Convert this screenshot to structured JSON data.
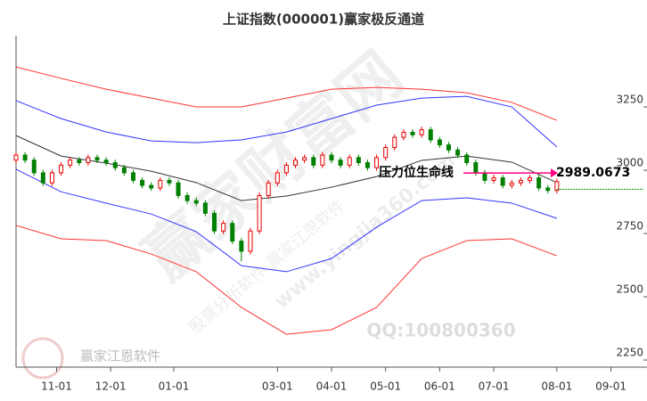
{
  "chart_data": {
    "type": "candlestick",
    "title": "上证指数(000001)赢家极反通道",
    "x": [
      0,
      2,
      4,
      6,
      8,
      10,
      12,
      14,
      16,
      18,
      20,
      22,
      24,
      26,
      28,
      30,
      32,
      34,
      36,
      38,
      40,
      42,
      44,
      46,
      48,
      50,
      52,
      54,
      56,
      58,
      60,
      62,
      64,
      66,
      68,
      70,
      72,
      74,
      76,
      78,
      80,
      82,
      84,
      86,
      88,
      90,
      92,
      94,
      96,
      98,
      100,
      102,
      104,
      106,
      108,
      110,
      112,
      114,
      116,
      118,
      120
    ],
    "open": [
      3040,
      3060,
      3040,
      2990,
      2950,
      2990,
      3020,
      3040,
      3030,
      3050,
      3040,
      3030,
      3010,
      2990,
      2960,
      2940,
      2930,
      2960,
      2950,
      2900,
      2880,
      2870,
      2830,
      2760,
      2790,
      2720,
      2680,
      2760,
      2900,
      2950,
      2990,
      3020,
      3040,
      3050,
      3020,
      3060,
      3040,
      3020,
      3050,
      3030,
      3010,
      3050,
      3090,
      3130,
      3150,
      3140,
      3160,
      3120,
      3100,
      3080,
      3060,
      3030,
      2990,
      2960,
      2970,
      2940,
      2950,
      2960,
      2970,
      2930,
      2920
    ],
    "high": [
      3072,
      3072,
      3052,
      3002,
      3002,
      3032,
      3052,
      3052,
      3062,
      3062,
      3052,
      3042,
      3022,
      3002,
      2972,
      2952,
      2972,
      2972,
      2962,
      2912,
      2892,
      2882,
      2842,
      2802,
      2802,
      2732,
      2772,
      2912,
      2962,
      3002,
      3032,
      3052,
      3062,
      3062,
      3072,
      3072,
      3052,
      3062,
      3062,
      3042,
      3062,
      3102,
      3142,
      3162,
      3162,
      3172,
      3172,
      3132,
      3112,
      3092,
      3072,
      3042,
      3002,
      2982,
      2982,
      2962,
      2972,
      2982,
      2982,
      2942,
      2967
    ],
    "low": [
      3028,
      3028,
      2978,
      2938,
      2938,
      2978,
      3008,
      3018,
      3018,
      3028,
      3018,
      2998,
      2978,
      2948,
      2928,
      2918,
      2918,
      2938,
      2888,
      2868,
      2858,
      2818,
      2748,
      2748,
      2708,
      2640,
      2668,
      2748,
      2888,
      2938,
      2978,
      3008,
      3028,
      3008,
      3008,
      3028,
      3008,
      3008,
      3018,
      2998,
      2998,
      3038,
      3078,
      3118,
      3128,
      3128,
      3108,
      3088,
      3068,
      3048,
      3018,
      2978,
      2948,
      2948,
      2928,
      2928,
      2938,
      2948,
      2918,
      2908,
      2908
    ],
    "close": [
      3060,
      3040,
      2990,
      2950,
      2990,
      3020,
      3040,
      3030,
      3050,
      3040,
      3030,
      3010,
      2990,
      2960,
      2940,
      2930,
      2960,
      2950,
      2900,
      2880,
      2870,
      2830,
      2760,
      2790,
      2720,
      2680,
      2760,
      2900,
      2950,
      2990,
      3020,
      3040,
      3050,
      3020,
      3060,
      3040,
      3020,
      3050,
      3030,
      3010,
      3050,
      3090,
      3130,
      3150,
      3140,
      3160,
      3120,
      3100,
      3080,
      3060,
      3030,
      2990,
      2960,
      2970,
      2940,
      2950,
      2960,
      2970,
      2930,
      2920,
      2955
    ],
    "up_color": "#e60000",
    "down_color": "#008000",
    "channel_x": [
      0,
      10,
      20,
      30,
      40,
      50,
      60,
      70,
      80,
      90,
      100,
      110,
      120
    ],
    "channels": [
      {
        "color": "#ff3333",
        "values": [
          3408,
          3363,
          3320,
          3285,
          3250,
          3250,
          3285,
          3320,
          3327,
          3320,
          3306,
          3268,
          3197
        ]
      },
      {
        "color": "#3333ff",
        "values": [
          3275,
          3204,
          3151,
          3116,
          3109,
          3120,
          3151,
          3204,
          3257,
          3285,
          3292,
          3250,
          3092
        ]
      },
      {
        "color": "#333333",
        "values": [
          3137,
          3056,
          3028,
          2996,
          2951,
          2880,
          2898,
          2933,
          2975,
          3039,
          3056,
          3032,
          2951
        ]
      },
      {
        "color": "#3333ff",
        "values": [
          3004,
          2915,
          2870,
          2827,
          2757,
          2623,
          2599,
          2651,
          2775,
          2880,
          2891,
          2870,
          2810
        ]
      },
      {
        "color": "#ff3333",
        "values": [
          2782,
          2729,
          2722,
          2669,
          2599,
          2458,
          2352,
          2370,
          2458,
          2651,
          2722,
          2729,
          2662
        ]
      }
    ],
    "last_price_line": 2925,
    "last_price_color": "#009900",
    "annotation": {
      "text": "压力位生命线",
      "value": 2989.0673,
      "label": "2989.0673",
      "color": "#ff0080"
    },
    "xlim": [
      0,
      140
    ],
    "ylim": [
      2222,
      3567
    ],
    "xticks": [
      {
        "value": 9,
        "label": "11-01"
      },
      {
        "value": 21,
        "label": "12-01"
      },
      {
        "value": 35,
        "label": "01-01"
      },
      {
        "value": 58,
        "label": "03-01"
      },
      {
        "value": 70,
        "label": "04-01"
      },
      {
        "value": 82,
        "label": "05-01"
      },
      {
        "value": 94,
        "label": "06-01"
      },
      {
        "value": 106,
        "label": "07-01"
      },
      {
        "value": 120,
        "label": "08-01"
      },
      {
        "value": 132,
        "label": "09-01"
      }
    ],
    "yticks": [
      2250,
      2500,
      2750,
      3000,
      3250
    ],
    "watermarks": [
      "赢家财富网",
      "QQ:100800360",
      "赢家江恩软件",
      "www.yingjia360.com",
      "股票分析软件 赢家江恩软件"
    ]
  }
}
